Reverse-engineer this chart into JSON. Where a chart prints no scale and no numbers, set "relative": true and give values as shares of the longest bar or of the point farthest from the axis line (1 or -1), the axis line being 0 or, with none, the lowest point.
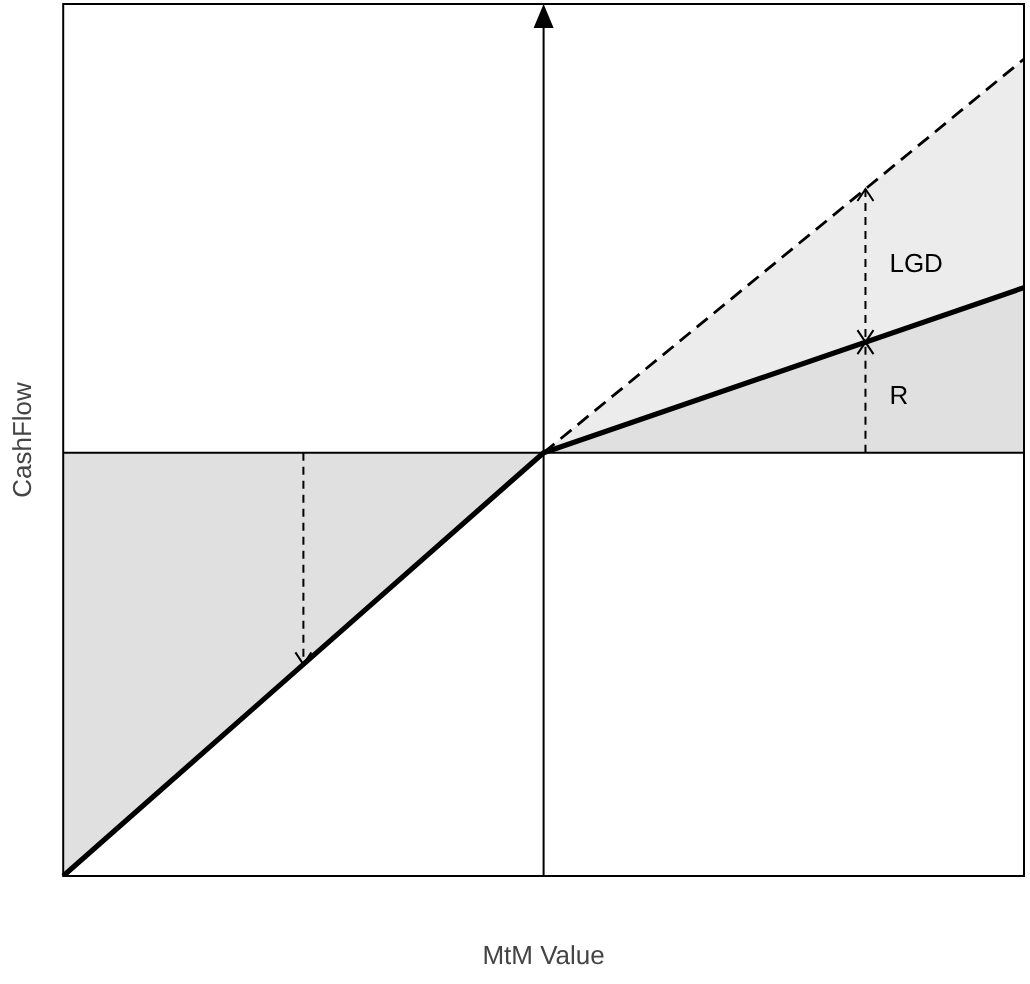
{
  "chart_data": {
    "type": "area",
    "xlabel": "MtM Value",
    "ylabel": "CashFlow",
    "relative": true,
    "stacked": true,
    "grid": false,
    "legend": false,
    "categories": [
      null,
      null,
      null
    ],
    "annotations": [
      "LGD",
      "R"
    ],
    "series": [
      {
        "color": "#000000",
        "values": [
          -1,
          0,
          0.39
        ],
        "line_style": "solid"
      },
      {
        "color": "#000000",
        "values": [
          null,
          0,
          0.54
        ],
        "line_style": "dashed"
      }
    ]
  }
}
